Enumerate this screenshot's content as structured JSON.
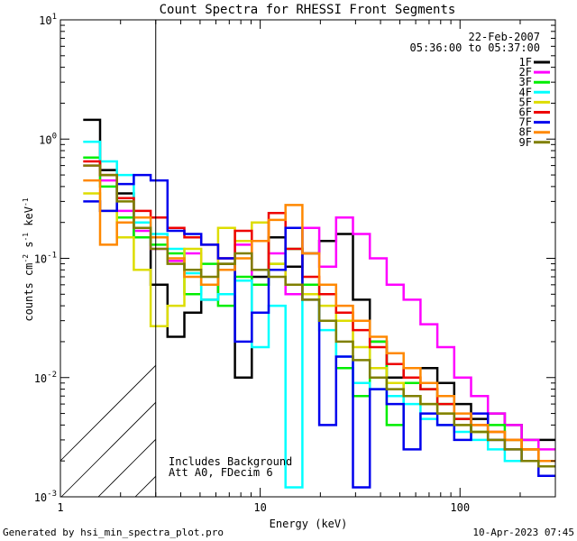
{
  "chart_data": {
    "type": "line",
    "title": "Count Spectra for RHESSI Front Segments",
    "xlabel": "Energy (keV)",
    "ylabel": "counts cm^-2 s^-1 keV^-1",
    "ylabel_text": {
      "a": "counts cm",
      "b": "-2",
      "c": " s",
      "d": "-1",
      "e": " keV",
      "f": "-1"
    },
    "x_scale": "log",
    "y_scale": "log",
    "xlim": [
      1,
      300
    ],
    "ylim": [
      0.001,
      10
    ],
    "x_ticks": [
      {
        "value": 1,
        "label": "1"
      },
      {
        "value": 10,
        "label": "10"
      },
      {
        "value": 100,
        "label": "100"
      }
    ],
    "y_ticks": [
      {
        "value": 0.001,
        "mant": "10",
        "exp": "-3"
      },
      {
        "value": 0.01,
        "mant": "10",
        "exp": "-2"
      },
      {
        "value": 0.1,
        "mant": "10",
        "exp": "-1"
      },
      {
        "value": 1,
        "mant": "10",
        "exp": "0"
      },
      {
        "value": 10,
        "mant": "10",
        "exp": "1"
      }
    ],
    "date": "22-Feb-2007",
    "time_range": "05:36:00 to 05:37:00",
    "attenuator_region_max_kev": 3,
    "annotations": [
      "Includes Background",
      "Att A0, FDecim 6"
    ],
    "series": [
      {
        "name": "1F",
        "color": "#000000",
        "values": [
          1.45,
          0.55,
          0.35,
          0.15,
          0.06,
          0.022,
          0.035,
          0.045,
          0.09,
          0.01,
          0.07,
          0.15,
          0.085,
          0.11,
          0.14,
          0.16,
          0.045,
          0.02,
          0.01,
          0.012,
          0.012,
          0.009,
          0.006,
          0.0045,
          0.005,
          0.004,
          0.003,
          0.003
        ]
      },
      {
        "name": "2F",
        "color": "#ff00ff",
        "values": [
          0.6,
          0.45,
          0.25,
          0.17,
          0.12,
          0.095,
          0.11,
          0.06,
          0.1,
          0.13,
          0.06,
          0.11,
          0.05,
          0.18,
          0.085,
          0.22,
          0.16,
          0.1,
          0.06,
          0.045,
          0.028,
          0.018,
          0.01,
          0.007,
          0.005,
          0.004,
          0.003,
          0.0025
        ]
      },
      {
        "name": "3F",
        "color": "#00ee00",
        "values": [
          0.7,
          0.4,
          0.22,
          0.15,
          0.13,
          0.11,
          0.05,
          0.09,
          0.04,
          0.07,
          0.06,
          0.09,
          0.12,
          0.06,
          0.03,
          0.012,
          0.007,
          0.02,
          0.004,
          0.009,
          0.008,
          0.006,
          0.0045,
          0.0035,
          0.004,
          0.003,
          0.0025,
          0.002
        ]
      },
      {
        "name": "4F",
        "color": "#00ffff",
        "values": [
          0.95,
          0.65,
          0.5,
          0.2,
          0.16,
          0.12,
          0.075,
          0.045,
          0.05,
          0.065,
          0.018,
          0.04,
          0.0012,
          0.05,
          0.025,
          0.015,
          0.009,
          0.008,
          0.007,
          0.006,
          0.0045,
          0.004,
          0.0035,
          0.003,
          0.0025,
          0.002,
          0.002,
          0.0018
        ]
      },
      {
        "name": "5F",
        "color": "#dddd00",
        "values": [
          0.35,
          0.25,
          0.15,
          0.08,
          0.027,
          0.04,
          0.12,
          0.06,
          0.18,
          0.14,
          0.2,
          0.09,
          0.06,
          0.05,
          0.04,
          0.03,
          0.018,
          0.012,
          0.009,
          0.007,
          0.006,
          0.005,
          0.004,
          0.0035,
          0.003,
          0.003,
          0.0025,
          0.002
        ]
      },
      {
        "name": "6F",
        "color": "#ee0000",
        "values": [
          0.65,
          0.5,
          0.32,
          0.25,
          0.22,
          0.18,
          0.15,
          0.13,
          0.1,
          0.17,
          0.08,
          0.24,
          0.12,
          0.07,
          0.05,
          0.035,
          0.025,
          0.018,
          0.013,
          0.01,
          0.008,
          0.006,
          0.0045,
          0.004,
          0.0035,
          0.003,
          0.0025,
          0.002
        ]
      },
      {
        "name": "7F",
        "color": "#0000ee",
        "values": [
          0.3,
          0.25,
          0.42,
          0.5,
          0.45,
          0.17,
          0.16,
          0.13,
          0.1,
          0.02,
          0.035,
          0.08,
          0.18,
          0.045,
          0.004,
          0.015,
          0.0012,
          0.008,
          0.006,
          0.0025,
          0.005,
          0.004,
          0.003,
          0.005,
          0.003,
          0.0025,
          0.002,
          0.0015
        ]
      },
      {
        "name": "8F",
        "color": "#ff8800",
        "values": [
          0.45,
          0.13,
          0.2,
          0.22,
          0.15,
          0.1,
          0.07,
          0.06,
          0.08,
          0.1,
          0.14,
          0.21,
          0.28,
          0.11,
          0.06,
          0.04,
          0.03,
          0.022,
          0.016,
          0.012,
          0.009,
          0.007,
          0.005,
          0.004,
          0.0035,
          0.003,
          0.0025,
          0.002
        ]
      },
      {
        "name": "9F",
        "color": "#7f7f00",
        "values": [
          0.6,
          0.5,
          0.3,
          0.18,
          0.12,
          0.09,
          0.08,
          0.07,
          0.09,
          0.11,
          0.08,
          0.07,
          0.06,
          0.045,
          0.03,
          0.02,
          0.014,
          0.01,
          0.008,
          0.007,
          0.006,
          0.005,
          0.004,
          0.0035,
          0.003,
          0.0025,
          0.002,
          0.0018
        ]
      }
    ]
  },
  "footer": {
    "left": "Generated by hsi_min_spectra_plot.pro",
    "right": "10-Apr-2023 07:45"
  }
}
